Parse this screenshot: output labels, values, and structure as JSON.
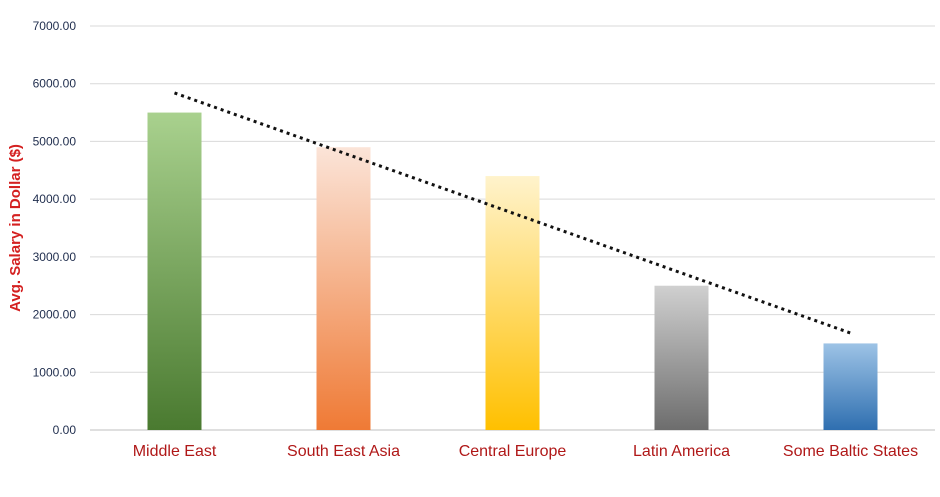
{
  "chart_data": {
    "type": "bar",
    "title": "",
    "xlabel": "",
    "ylabel": "Avg. Salary in Dollar ($)",
    "categories": [
      "Middle East",
      "South East Asia",
      "Central Europe",
      "Latin America",
      "Some Baltic States"
    ],
    "values": [
      5500,
      4900,
      4400,
      2500,
      1500
    ],
    "ylim": [
      0,
      7000
    ],
    "yticks": [
      "0.00",
      "1000.00",
      "2000.00",
      "3000.00",
      "4000.00",
      "5000.00",
      "6000.00",
      "7000.00"
    ],
    "ytick_values": [
      0,
      1000,
      2000,
      3000,
      4000,
      5000,
      6000,
      7000
    ],
    "grid": true,
    "legend": "none",
    "trendline": {
      "type": "linear",
      "style": "dotted",
      "color": "#111111"
    },
    "bar_gradients": [
      [
        "#a9d18e",
        "#4a7a30"
      ],
      [
        "#fbe4d8",
        "#ef7a35"
      ],
      [
        "#fff3cc",
        "#ffc000"
      ],
      [
        "#d0d0d0",
        "#6d6d6d"
      ],
      [
        "#9dc3e6",
        "#2f6fb0"
      ]
    ]
  }
}
